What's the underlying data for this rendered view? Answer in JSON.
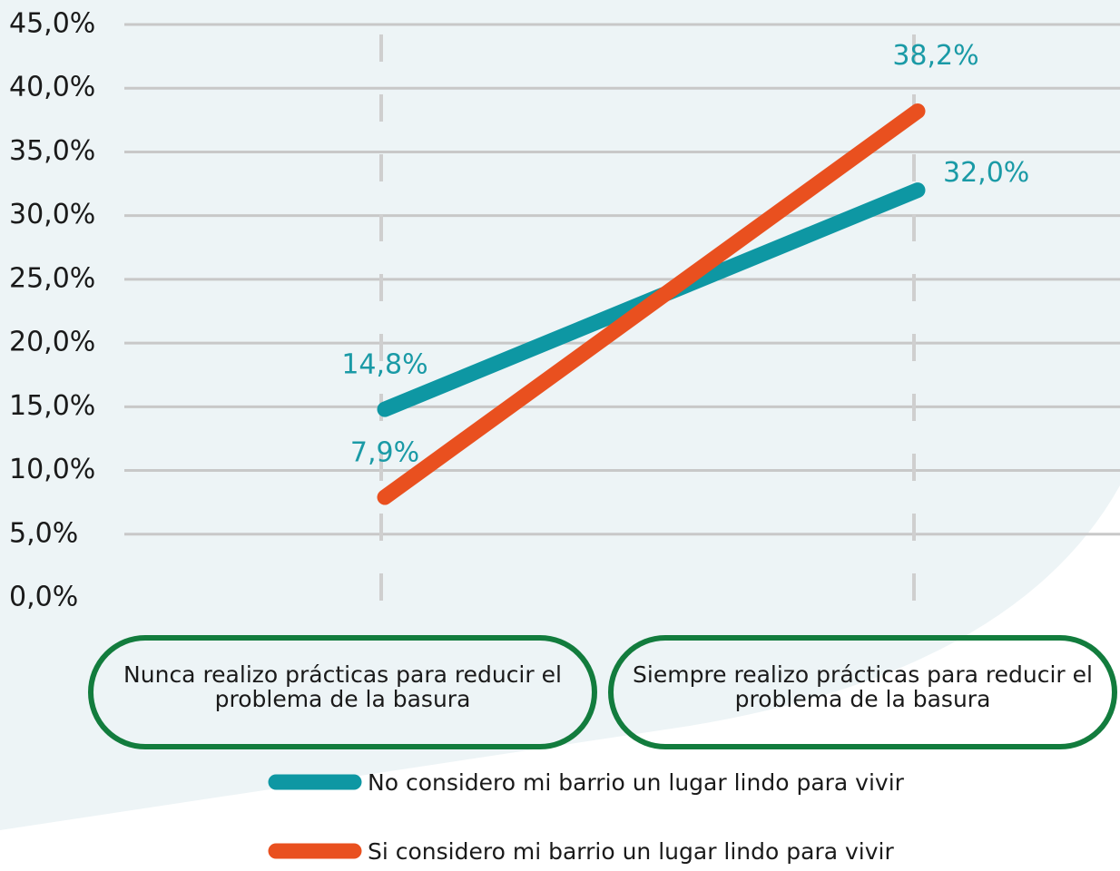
{
  "chart_data": {
    "type": "line",
    "categories": [
      "Nunca realizo prácticas para reducir el problema de la basura",
      "Siempre realizo prácticas para reducir el problema de la basura"
    ],
    "series": [
      {
        "name": "No considero mi barrio un lugar lindo para vivir",
        "color": "#0e97a3",
        "values": [
          14.8,
          32.0
        ],
        "value_labels": [
          "14,8%",
          "32,0%"
        ]
      },
      {
        "name": "Si considero mi barrio un lugar lindo para vivir",
        "color": "#e9501f",
        "values": [
          7.9,
          38.2
        ],
        "value_labels": [
          "7,9%",
          "38,2%"
        ]
      }
    ],
    "ylim": [
      0,
      45
    ],
    "yticks": [
      {
        "value": 0,
        "label": "0,0%"
      },
      {
        "value": 5,
        "label": "5,0%"
      },
      {
        "value": 10,
        "label": "10,0%"
      },
      {
        "value": 15,
        "label": "15,0%"
      },
      {
        "value": 20,
        "label": "20,0%"
      },
      {
        "value": 25,
        "label": "25,0%"
      },
      {
        "value": 30,
        "label": "30,0%"
      },
      {
        "value": 35,
        "label": "35,0%"
      },
      {
        "value": 40,
        "label": "40,0%"
      },
      {
        "value": 45,
        "label": "45,0%"
      }
    ],
    "grid": true
  }
}
